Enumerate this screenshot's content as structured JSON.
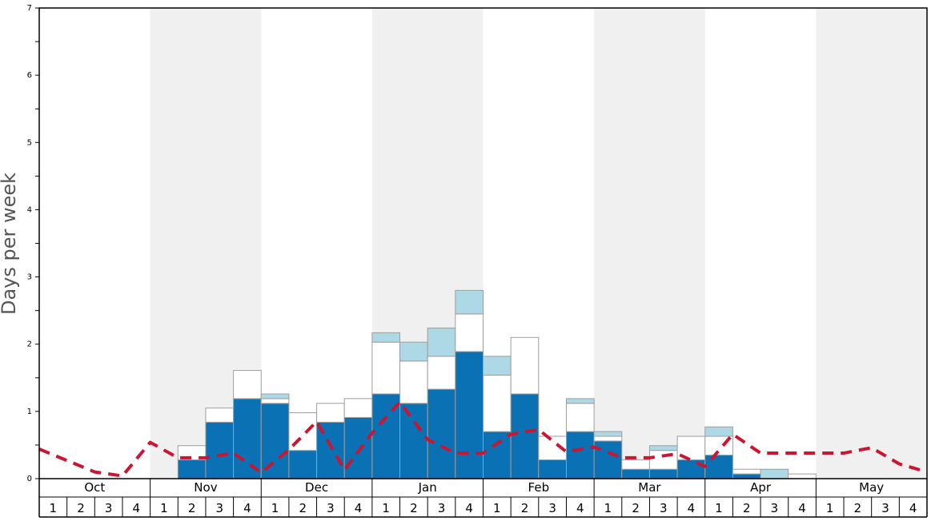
{
  "chart_data": {
    "type": "bar",
    "title": "",
    "xlabel": "",
    "ylabel": "Days per week",
    "ylim": [
      0,
      7
    ],
    "y_ticks": [
      0,
      1,
      2,
      3,
      4,
      5,
      6,
      7
    ],
    "stacked": true,
    "months": [
      "Oct",
      "Nov",
      "Dec",
      "Jan",
      "Feb",
      "Mar",
      "Apr",
      "May"
    ],
    "week_labels": [
      "1",
      "2",
      "3",
      "4"
    ],
    "shaded_months": [
      "Nov",
      "Jan",
      "Mar",
      "May"
    ],
    "colors": {
      "series1": "#0a71b4",
      "series2": "#ffffff",
      "series3": "#add8e6",
      "line": "#cc1530",
      "shade": "#f0f0f0",
      "bar_edge": "#9e9e9e"
    },
    "series": [
      {
        "type": "bar",
        "color": "#0a71b4",
        "values": [
          0,
          0,
          0,
          0,
          0,
          0.28,
          0.84,
          1.19,
          1.12,
          0.42,
          0.84,
          0.91,
          1.26,
          1.12,
          1.33,
          1.89,
          0.7,
          1.26,
          0.28,
          0.7,
          0.56,
          0.14,
          0.14,
          0.28,
          0.35,
          0.07,
          0,
          0,
          0,
          0,
          0,
          0
        ]
      },
      {
        "type": "bar",
        "color": "#ffffff",
        "values": [
          0,
          0,
          0,
          0,
          0,
          0.21,
          0.21,
          0.42,
          0.07,
          0.56,
          0.28,
          0.28,
          0.77,
          0.63,
          0.49,
          0.56,
          0.84,
          0.84,
          0.35,
          0.42,
          0.07,
          0.14,
          0.28,
          0.35,
          0.28,
          0.07,
          0,
          0.07,
          0,
          0,
          0,
          0
        ]
      },
      {
        "type": "bar",
        "color": "#add8e6",
        "values": [
          0,
          0,
          0,
          0,
          0,
          0,
          0,
          0,
          0.07,
          0,
          0,
          0,
          0.14,
          0.28,
          0.42,
          0.35,
          0.28,
          0,
          0,
          0.07,
          0.07,
          0,
          0.07,
          0,
          0.14,
          0,
          0.14,
          0,
          0,
          0,
          0,
          0
        ]
      },
      {
        "type": "line",
        "color": "#cc1530",
        "values": [
          0.44,
          0.27,
          0.1,
          0.04,
          0.54,
          0.31,
          0.31,
          0.38,
          0.09,
          0.43,
          0.85,
          0.13,
          0.68,
          1.14,
          0.58,
          0.38,
          0.38,
          0.66,
          0.73,
          0.4,
          0.47,
          0.31,
          0.31,
          0.37,
          0.18,
          0.66,
          0.38,
          0.38,
          0.38,
          0.38,
          0.46,
          0.22,
          0.1
        ]
      }
    ]
  }
}
